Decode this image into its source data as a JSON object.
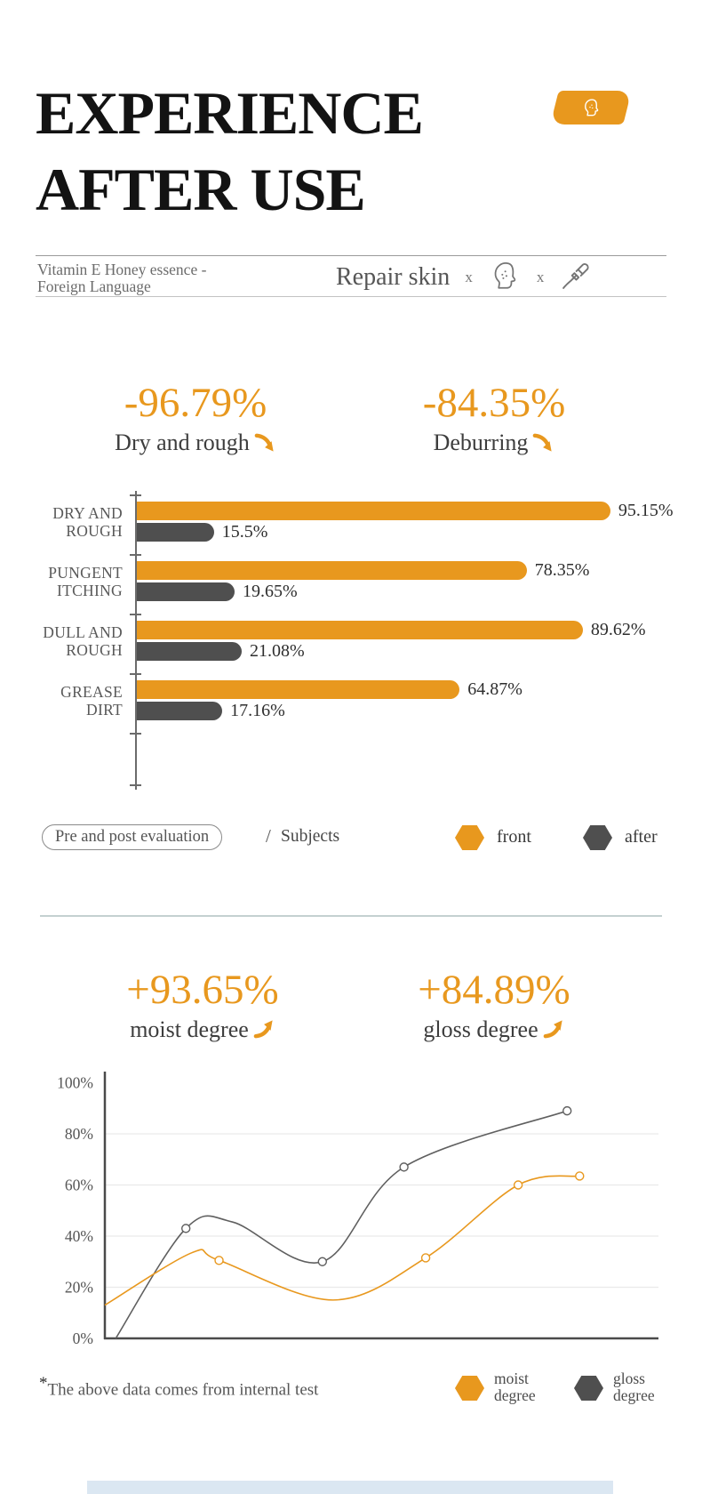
{
  "colors": {
    "accent": "#E8981E",
    "dark": "#4F4F4F",
    "curve_gray": "#5F5F5F"
  },
  "header": {
    "title_line1": "EXPERIENCE",
    "title_line2": "AFTER USE"
  },
  "subheader": {
    "product_line1": "Vitamin E Honey essence -",
    "product_line2": "Foreign Language",
    "claim": "Repair skin",
    "separator": "x"
  },
  "stats_top": [
    {
      "value": "-96.79%",
      "label": "Dry and rough",
      "arrow": "down"
    },
    {
      "value": "-84.35%",
      "label": "Deburring",
      "arrow": "down"
    }
  ],
  "stats_bottom": [
    {
      "value": "+93.65%",
      "label": "moist degree",
      "arrow": "up"
    },
    {
      "value": "+84.89%",
      "label": "gloss degree",
      "arrow": "up"
    }
  ],
  "bar_legend": {
    "pill": "Pre and post evaluation",
    "slash": "/",
    "subjects": "Subjects",
    "front": "front",
    "after": "after"
  },
  "footnote": {
    "asterisk": "*",
    "text": "The above data comes from internal test"
  },
  "line_legend": [
    {
      "label_line1": "moist",
      "label_line2": "degree",
      "color": "#E8981E"
    },
    {
      "label_line1": "gloss",
      "label_line2": "degree",
      "color": "#4F4F4F"
    }
  ],
  "chart_data": [
    {
      "type": "bar",
      "orientation": "horizontal",
      "categories": [
        "DRY AND\nROUGH",
        "PUNGENT\nITCHING",
        "DULL AND\nROUGH",
        "GREASE\nDIRT"
      ],
      "series": [
        {
          "name": "front",
          "color": "#E8981E",
          "values": [
            95.15,
            78.35,
            89.62,
            64.87
          ],
          "labels": [
            "95.15%",
            "78.35%",
            "89.62%",
            "64.87%"
          ]
        },
        {
          "name": "after",
          "color": "#4F4F4F",
          "values": [
            15.5,
            19.65,
            21.08,
            17.16
          ],
          "labels": [
            "15.5%",
            "19.65%",
            "21.08%",
            "17.16%"
          ]
        }
      ],
      "xlim": [
        0,
        100
      ]
    },
    {
      "type": "line",
      "ylim": [
        0,
        100
      ],
      "y_ticks": [
        0,
        20,
        40,
        60,
        80,
        100
      ],
      "y_tick_labels": [
        "0%",
        "20%",
        "40%",
        "60%",
        "80%",
        "100%"
      ],
      "grid": "horizontal",
      "legend_position": "bottom-right",
      "series": [
        {
          "name": "gloss degree",
          "color": "#5F5F5F",
          "points": [
            [
              0.02,
              0
            ],
            [
              0.149,
              43,
              1
            ],
            [
              0.235,
              45.5
            ],
            [
              0.4,
              30,
              1
            ],
            [
              0.55,
              67,
              1
            ],
            [
              0.85,
              89,
              1
            ]
          ]
        },
        {
          "name": "moist degree",
          "color": "#E8981E",
          "points": [
            [
              0.0,
              13
            ],
            [
              0.16,
              33.5
            ],
            [
              0.21,
              30.5,
              1
            ],
            [
              0.42,
              15
            ],
            [
              0.59,
              31.5,
              1
            ],
            [
              0.76,
              60,
              1
            ],
            [
              0.873,
              63.5,
              1
            ]
          ]
        }
      ]
    }
  ]
}
